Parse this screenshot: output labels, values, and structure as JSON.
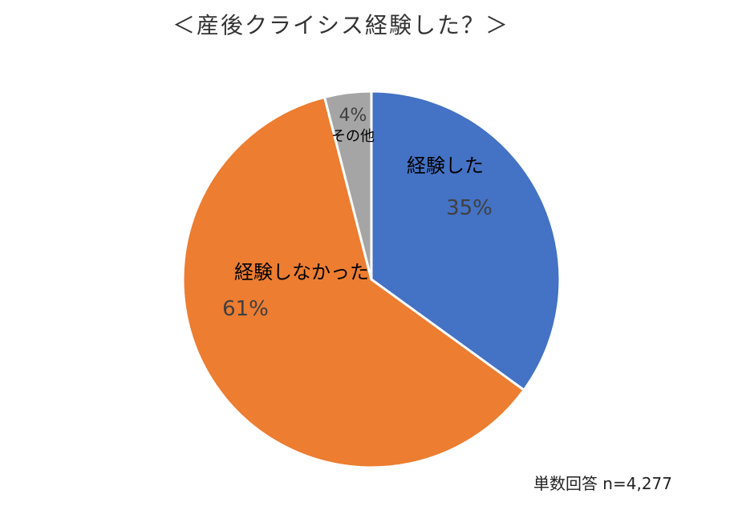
{
  "title": "＜産後クライシス経験した？＞",
  "note": "単数回答 n=4,277",
  "chart_data": {
    "type": "pie",
    "title": "＜産後クライシス経験した？＞",
    "start_angle_deg": 0,
    "direction": "clockwise",
    "slices": [
      {
        "label": "経験した",
        "value": 35,
        "value_label": "35%",
        "color": "#4472c4"
      },
      {
        "label": "経験しなかった",
        "value": 61,
        "value_label": "61%",
        "color": "#ed7d31"
      },
      {
        "label": "その他",
        "value": 4,
        "value_label": "4%",
        "color": "#a5a5a5"
      }
    ]
  }
}
